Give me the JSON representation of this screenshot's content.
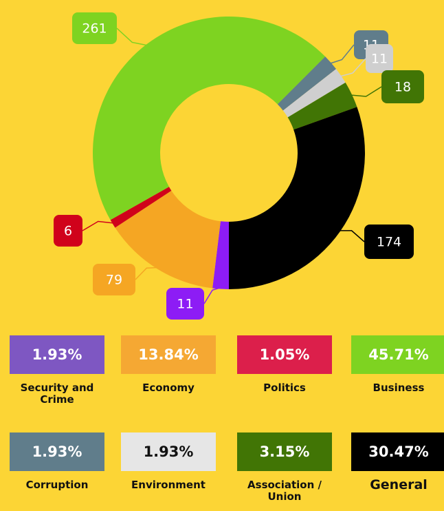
{
  "chart_data": {
    "type": "donut",
    "categories": [
      "Security and Crime",
      "Economy",
      "Politics",
      "Business",
      "Corruption",
      "Environment",
      "Association / Union",
      "General"
    ],
    "values": [
      11,
      79,
      6,
      261,
      11,
      11,
      18,
      174
    ],
    "legend_labels": [
      "1.93%",
      "13.84%",
      "1.05%",
      "45.71%",
      "1.93%",
      "1.93%",
      "3.15%",
      "30.47%"
    ],
    "colors": [
      "#8d1cf5",
      "#f5a623",
      "#d0021b",
      "#7ed321",
      "#607d8b",
      "#cfcfcf",
      "#417505",
      "#000000"
    ],
    "legend_colors": [
      "#7e57c2",
      "#f5a833",
      "#dc1f4b",
      "#7ed321",
      "#607d8b",
      "#e6e6e6",
      "#417505",
      "#000000"
    ]
  }
}
